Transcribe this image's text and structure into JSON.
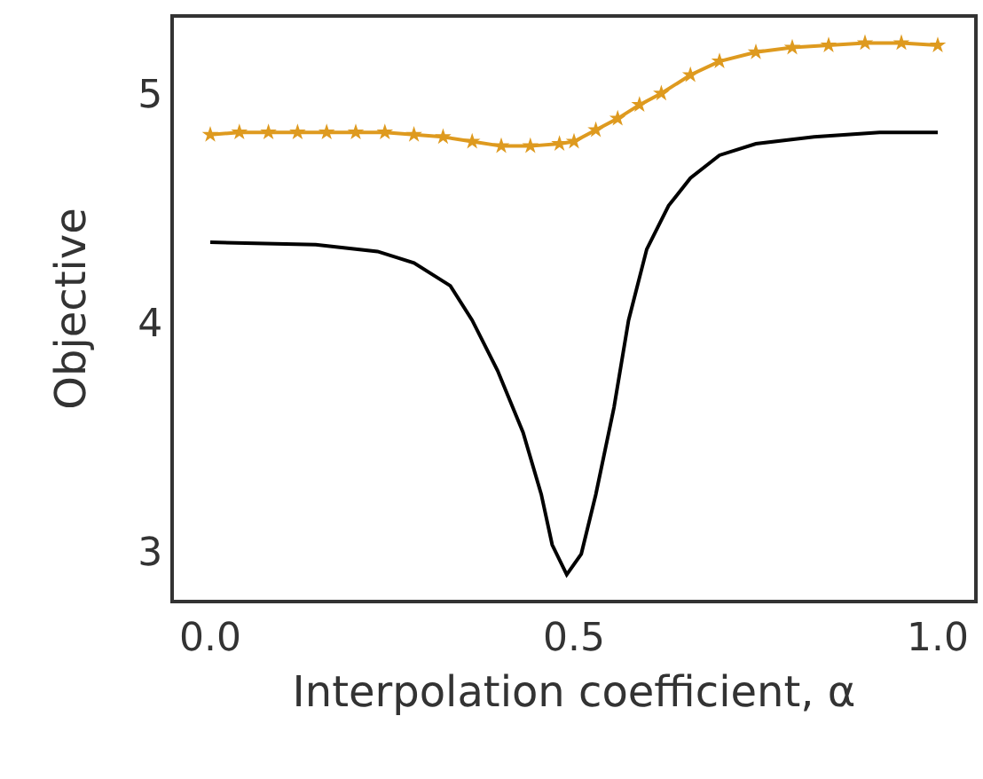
{
  "chart_data": {
    "type": "line",
    "xlabel": "Interpolation coefficient, α",
    "ylabel": "Objective",
    "xlim": [
      -0.05,
      1.05
    ],
    "xticks": [
      {
        "value": 0,
        "label": "0.0"
      },
      0.5,
      {
        "value": 1,
        "label": "1.0"
      }
    ],
    "ylim": [
      2.79,
      5.33
    ],
    "yticks": [
      3,
      4,
      5
    ],
    "grid": false,
    "series": [
      {
        "color": "#000000",
        "marker": "none",
        "line_style": "solid",
        "x": [
          0,
          0.145,
          0.23,
          0.28,
          0.33,
          0.36,
          0.395,
          0.43,
          0.455,
          0.47,
          0.49,
          0.51,
          0.53,
          0.555,
          0.575,
          0.6,
          0.63,
          0.66,
          0.7,
          0.75,
          0.83,
          0.92,
          1.0
        ],
        "values": [
          4.35,
          4.34,
          4.31,
          4.26,
          4.16,
          4.01,
          3.79,
          3.52,
          3.25,
          3.03,
          2.9,
          2.99,
          3.25,
          3.63,
          4.01,
          4.32,
          4.51,
          4.63,
          4.73,
          4.78,
          4.81,
          4.83,
          4.83
        ]
      },
      {
        "color": "#de9a1f",
        "marker": "star",
        "line_style": "solid",
        "x": [
          0,
          0.04,
          0.08,
          0.12,
          0.16,
          0.2,
          0.24,
          0.28,
          0.32,
          0.36,
          0.4,
          0.44,
          0.48,
          0.5,
          0.53,
          0.56,
          0.59,
          0.62,
          0.66,
          0.7,
          0.75,
          0.8,
          0.85,
          0.9,
          0.95,
          1.0
        ],
        "values": [
          4.82,
          4.83,
          4.83,
          4.83,
          4.83,
          4.83,
          4.83,
          4.82,
          4.81,
          4.79,
          4.77,
          4.77,
          4.78,
          4.79,
          4.84,
          4.89,
          4.95,
          5.0,
          5.08,
          5.14,
          5.18,
          5.2,
          5.21,
          5.22,
          5.22,
          5.21
        ]
      }
    ]
  }
}
